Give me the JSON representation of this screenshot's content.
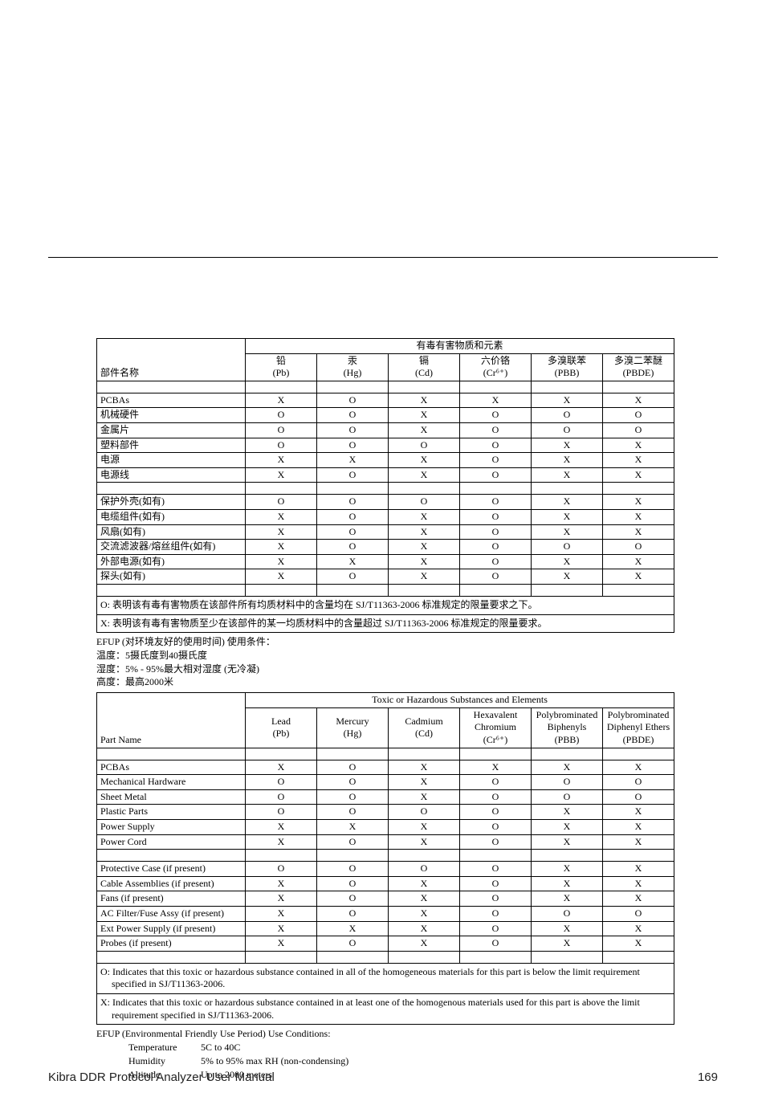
{
  "tableCN": {
    "groupHeader": "有毒有害物质和元素",
    "partNameHeader": "部件名称",
    "columns": [
      {
        "line1": "铅",
        "line2": "(Pb)"
      },
      {
        "line1": "汞",
        "line2": "(Hg)"
      },
      {
        "line1": "镉",
        "line2": "(Cd)"
      },
      {
        "line1": "六价铬",
        "line2": "(Cr⁶⁺)"
      },
      {
        "line1": "多溴联苯",
        "line2": "(PBB)"
      },
      {
        "line1": "多溴二苯醚",
        "line2": "(PBDE)"
      }
    ],
    "rows": [
      {
        "name": "PCBAs",
        "v": [
          "X",
          "O",
          "X",
          "X",
          "X",
          "X"
        ]
      },
      {
        "name": "机械硬件",
        "v": [
          "O",
          "O",
          "X",
          "O",
          "O",
          "O"
        ]
      },
      {
        "name": "金属片",
        "v": [
          "O",
          "O",
          "X",
          "O",
          "O",
          "O"
        ]
      },
      {
        "name": "塑料部件",
        "v": [
          "O",
          "O",
          "O",
          "O",
          "X",
          "X"
        ]
      },
      {
        "name": "电源",
        "v": [
          "X",
          "X",
          "X",
          "O",
          "X",
          "X"
        ]
      },
      {
        "name": "电源线",
        "v": [
          "X",
          "O",
          "X",
          "O",
          "X",
          "X"
        ]
      }
    ],
    "rows2": [
      {
        "name": "保护外壳(如有)",
        "v": [
          "O",
          "O",
          "O",
          "O",
          "X",
          "X"
        ]
      },
      {
        "name": "电缆组件(如有)",
        "v": [
          "X",
          "O",
          "X",
          "O",
          "X",
          "X"
        ]
      },
      {
        "name": "风扇(如有)",
        "v": [
          "X",
          "O",
          "X",
          "O",
          "X",
          "X"
        ]
      },
      {
        "name": "交流滤波器/熔丝组件(如有)",
        "v": [
          "X",
          "O",
          "X",
          "O",
          "O",
          "O"
        ]
      },
      {
        "name": "外部电源(如有)",
        "v": [
          "X",
          "X",
          "X",
          "O",
          "X",
          "X"
        ]
      },
      {
        "name": "探头(如有)",
        "v": [
          "X",
          "O",
          "X",
          "O",
          "X",
          "X"
        ]
      }
    ],
    "noteO": "O: 表明该有毒有害物质在该部件所有均质材料中的含量均在 SJ/T11363-2006 标准规定的限量要求之下。",
    "noteX": "X: 表明该有毒有害物质至少在该部件的某一均质材料中的含量超过 SJ/T11363-2006 标准规定的限量要求。"
  },
  "efupCN": {
    "line1": "EFUP (对环境友好的使用时间) 使用条件：",
    "line2": "温度：5摄氏度到40摄氏度",
    "line3": "湿度：5% - 95%最大相对湿度 (无冷凝)",
    "line4": "高度：最高2000米"
  },
  "tableEN": {
    "groupHeader": "Toxic or Hazardous Substances and Elements",
    "partNameHeader": "Part Name",
    "columns": [
      {
        "line1": "Lead",
        "line2": "(Pb)"
      },
      {
        "line1": "Mercury",
        "line2": "(Hg)"
      },
      {
        "line1": "Cadmium",
        "line2": "(Cd)"
      },
      {
        "line1": "Hexavalent Chromium",
        "line2": "(Cr⁶⁺)"
      },
      {
        "line1": "Polybrominated Biphenyls",
        "line2": "(PBB)"
      },
      {
        "line1": "Polybrominated Diphenyl Ethers",
        "line2": "(PBDE)"
      }
    ],
    "rows": [
      {
        "name": "PCBAs",
        "v": [
          "X",
          "O",
          "X",
          "X",
          "X",
          "X"
        ]
      },
      {
        "name": "Mechanical Hardware",
        "v": [
          "O",
          "O",
          "X",
          "O",
          "O",
          "O"
        ]
      },
      {
        "name": "Sheet Metal",
        "v": [
          "O",
          "O",
          "X",
          "O",
          "O",
          "O"
        ]
      },
      {
        "name": "Plastic Parts",
        "v": [
          "O",
          "O",
          "O",
          "O",
          "X",
          "X"
        ]
      },
      {
        "name": "Power Supply",
        "v": [
          "X",
          "X",
          "X",
          "O",
          "X",
          "X"
        ]
      },
      {
        "name": "Power Cord",
        "v": [
          "X",
          "O",
          "X",
          "O",
          "X",
          "X"
        ]
      }
    ],
    "rows2": [
      {
        "name": "Protective Case (if present)",
        "v": [
          "O",
          "O",
          "O",
          "O",
          "X",
          "X"
        ]
      },
      {
        "name": "Cable Assemblies (if present)",
        "v": [
          "X",
          "O",
          "X",
          "O",
          "X",
          "X"
        ]
      },
      {
        "name": "Fans (if present)",
        "v": [
          "X",
          "O",
          "X",
          "O",
          "X",
          "X"
        ]
      },
      {
        "name": "AC Filter/Fuse Assy (if present)",
        "v": [
          "X",
          "O",
          "X",
          "O",
          "O",
          "O"
        ]
      },
      {
        "name": "Ext Power Supply (if present)",
        "v": [
          "X",
          "X",
          "X",
          "O",
          "X",
          "X"
        ]
      },
      {
        "name": "Probes (if present)",
        "v": [
          "X",
          "O",
          "X",
          "O",
          "X",
          "X"
        ]
      }
    ],
    "noteO": "O: Indicates that this toxic or hazardous substance contained in all of the homogeneous materials for this part is below the limit requirement specified in SJ/T11363-2006.",
    "noteX": "X: Indicates that this toxic or hazardous substance contained in at least one of the homogenous materials used for this part is above the limit requirement specified in SJ/T11363-2006."
  },
  "efupEN": {
    "line1": "EFUP (Environmental Friendly Use Period) Use Conditions:",
    "cond": [
      {
        "label": "Temperature",
        "value": "5C to 40C"
      },
      {
        "label": "Humidity",
        "value": "5% to 95% max RH (non-condensing)"
      },
      {
        "label": "Altitude",
        "value": "Up to 2000 meters"
      }
    ]
  },
  "footer": {
    "title": "Kibra DDR Protocol Analyzer User Manual",
    "page": "169"
  },
  "colWidths": {
    "name": "185",
    "val": "89"
  }
}
